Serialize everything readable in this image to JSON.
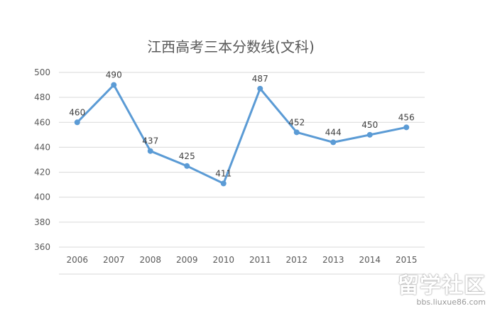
{
  "chart_data": {
    "type": "line",
    "title": "江西高考三本分数线(文科)",
    "categories": [
      "2006",
      "2007",
      "2008",
      "2009",
      "2010",
      "2011",
      "2012",
      "2013",
      "2014",
      "2015"
    ],
    "series": [
      {
        "values": [
          460,
          490,
          437,
          425,
          411,
          487,
          452,
          444,
          450,
          456
        ]
      }
    ],
    "yticks": [
      "500",
      "480",
      "460",
      "440",
      "420",
      "400",
      "380",
      "360"
    ],
    "ylim": [
      360,
      500
    ],
    "grid": true,
    "legend": "none",
    "line_color": "#5b9bd5"
  },
  "watermark": {
    "main": "留学社区",
    "sub": "bbs.liuxue86.com"
  }
}
